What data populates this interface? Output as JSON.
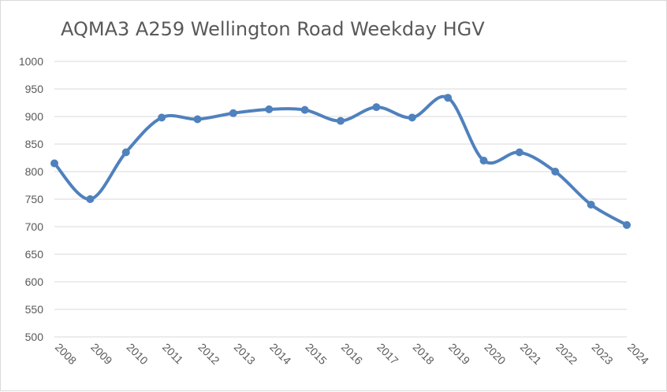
{
  "chart_data": {
    "type": "line",
    "title": "AQMA3 A259 Wellington Road Weekday HGV",
    "xlabel": "",
    "ylabel": "",
    "ylim": [
      500,
      1000
    ],
    "ytick_step": 50,
    "grid": true,
    "smooth": true,
    "categories": [
      "2008",
      "2009",
      "2010",
      "2011",
      "2012",
      "2013",
      "2014",
      "2015",
      "2016",
      "2017",
      "2018",
      "2019",
      "2020",
      "2021",
      "2022",
      "2023",
      "2024"
    ],
    "series": [
      {
        "values": [
          815,
          750,
          835,
          898,
          895,
          906,
          913,
          912,
          892,
          917,
          898,
          934,
          820,
          835,
          800,
          740,
          703
        ],
        "color": "#4f81bd"
      }
    ],
    "colors": {
      "grid": "#d9d9d9",
      "text": "#595959"
    }
  }
}
